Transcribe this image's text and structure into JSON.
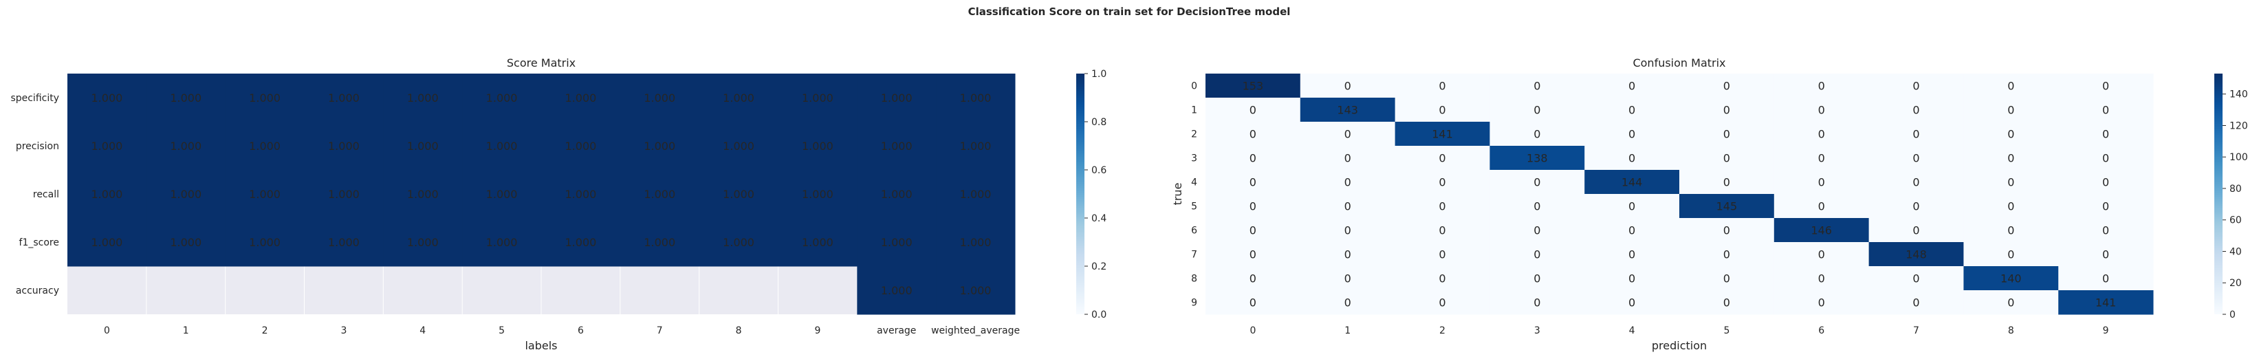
{
  "suptitle": "Classification Score on train set for DecisionTree model",
  "colors": {
    "dark": "#08306b",
    "light": "#f7fbff",
    "nan_bg": "#eaeaf2",
    "text_dark": "#262626",
    "text_light": "#ffffff"
  },
  "colormap": [
    "#f7fbff",
    "#deebf7",
    "#c6dbef",
    "#9ecae1",
    "#6baed6",
    "#4292c6",
    "#2171b5",
    "#08519c",
    "#08306b"
  ],
  "chart_data": [
    {
      "type": "heatmap",
      "title": "Score Matrix",
      "xlabel": "labels",
      "ylabel": "",
      "x": [
        "0",
        "1",
        "2",
        "3",
        "4",
        "5",
        "6",
        "7",
        "8",
        "9",
        "average",
        "weighted_average"
      ],
      "y": [
        "specificity",
        "precision",
        "recall",
        "f1_score",
        "accuracy"
      ],
      "values": [
        [
          1.0,
          1.0,
          1.0,
          1.0,
          1.0,
          1.0,
          1.0,
          1.0,
          1.0,
          1.0,
          1.0,
          1.0
        ],
        [
          1.0,
          1.0,
          1.0,
          1.0,
          1.0,
          1.0,
          1.0,
          1.0,
          1.0,
          1.0,
          1.0,
          1.0
        ],
        [
          1.0,
          1.0,
          1.0,
          1.0,
          1.0,
          1.0,
          1.0,
          1.0,
          1.0,
          1.0,
          1.0,
          1.0
        ],
        [
          1.0,
          1.0,
          1.0,
          1.0,
          1.0,
          1.0,
          1.0,
          1.0,
          1.0,
          1.0,
          1.0,
          1.0
        ],
        [
          null,
          null,
          null,
          null,
          null,
          null,
          null,
          null,
          null,
          null,
          1.0,
          1.0
        ]
      ],
      "annotation_format": "0.000",
      "vmin": 0,
      "vmax": 1,
      "colorbar_ticks": [
        0.0,
        0.2,
        0.4,
        0.6,
        0.8,
        1.0
      ],
      "colorbar_labels": [
        "0.0",
        "0.2",
        "0.4",
        "0.6",
        "0.8",
        "1.0"
      ]
    },
    {
      "type": "heatmap",
      "title": "Confusion Matrix",
      "xlabel": "prediction",
      "ylabel": "true",
      "x": [
        "0",
        "1",
        "2",
        "3",
        "4",
        "5",
        "6",
        "7",
        "8",
        "9"
      ],
      "y": [
        "0",
        "1",
        "2",
        "3",
        "4",
        "5",
        "6",
        "7",
        "8",
        "9"
      ],
      "values": [
        [
          153,
          0,
          0,
          0,
          0,
          0,
          0,
          0,
          0,
          0
        ],
        [
          0,
          143,
          0,
          0,
          0,
          0,
          0,
          0,
          0,
          0
        ],
        [
          0,
          0,
          141,
          0,
          0,
          0,
          0,
          0,
          0,
          0
        ],
        [
          0,
          0,
          0,
          138,
          0,
          0,
          0,
          0,
          0,
          0
        ],
        [
          0,
          0,
          0,
          0,
          144,
          0,
          0,
          0,
          0,
          0
        ],
        [
          0,
          0,
          0,
          0,
          0,
          145,
          0,
          0,
          0,
          0
        ],
        [
          0,
          0,
          0,
          0,
          0,
          0,
          146,
          0,
          0,
          0
        ],
        [
          0,
          0,
          0,
          0,
          0,
          0,
          0,
          148,
          0,
          0
        ],
        [
          0,
          0,
          0,
          0,
          0,
          0,
          0,
          0,
          140,
          0
        ],
        [
          0,
          0,
          0,
          0,
          0,
          0,
          0,
          0,
          0,
          141
        ]
      ],
      "annotation_format": "integer",
      "vmin": 0,
      "vmax": 153,
      "colorbar_ticks": [
        0,
        20,
        40,
        60,
        80,
        100,
        120,
        140
      ],
      "colorbar_labels": [
        "0",
        "20",
        "40",
        "60",
        "80",
        "100",
        "120",
        "140"
      ]
    }
  ]
}
